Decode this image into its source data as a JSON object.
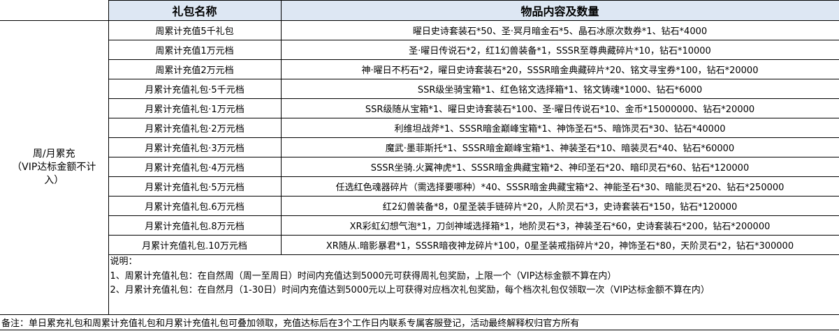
{
  "header": {
    "col_name": "礼包名称",
    "col_items": "物品内容及数量"
  },
  "category": "周/月累充\n（VIP达标金额不计入）",
  "rows": [
    {
      "name": "周累计充值5千礼包",
      "items": "曜日史诗套装石*50、圣·冥月暗金石*5、晶石冰原次数券*1、钻石*4000"
    },
    {
      "name": "周累计充值1万元档",
      "items": "圣·曜日传说石*2，红1幻兽装备*1，SSSR至尊典藏碎片*10，钻石*10000"
    },
    {
      "name": "周累计充值2万元档",
      "items": "神·曜日不朽石*2，曜日史诗套装石*20，SSSR暗金典藏碎片*20、铭文寻宝券*100，钻石*20000"
    },
    {
      "name": "月累计充值礼包·5千元档",
      "items": "SSR级坐骑宝箱*1、红色铭文选择箱*1、铭文铸魂*1000、钻石*6000"
    },
    {
      "name": "月累计充值礼包·1万元档",
      "items": "SSR级随从宝箱*1、曜日史诗套装石*100、圣·曜日传说石*10、金币*15000000、钻石*20000"
    },
    {
      "name": "月累计充值礼包·2万元档",
      "items": "利维坦战斧*1、SSSR暗金巅峰宝箱*1、神饰圣石*5、暗饰灵石*30、钻石*40000"
    },
    {
      "name": "月累计充值礼包·3万元档",
      "items": "魔武·墨菲斯托*1、SSSR暗金巅峰宝箱*1、神装圣石*10、暗装灵石*40、钻石*60000"
    },
    {
      "name": "月累计充值礼包·4万元档",
      "items": "SSSR坐骑.火翼神虎*1、SSSR暗金典藏宝箱*2、神印圣石*20、暗印灵石*60、钻石*120000"
    },
    {
      "name": "月累计充值礼包·5万元档",
      "items": "任选红色魂器碎片（需选择要哪种）*40、SSSR暗金典藏宝箱*2、神能圣石*30、暗能灵石*20、钻石*250000"
    },
    {
      "name": "月累计充值礼包.6万元档",
      "items": "红2幻兽装备*8，0星圣装手链碎片*20，人阶灵石*3，史诗套装石*150，钻石*120000"
    },
    {
      "name": "月累计充值礼包.8万元档",
      "items": "XR彩虹幻想气泡*1，刀剑神域选择箱*1，地阶灵石*3，神装圣石*60，史诗套装石*200，钻石*200000"
    },
    {
      "name": "月累计充值礼包.10万元档",
      "items": "XR随从.暗影暴君*1，SSSR暗夜神龙碎片*100，0星圣装戒指碎片*20，神饰圣石*80，天阶灵石*2，钻石*300000"
    }
  ],
  "notes": {
    "title": "说明：",
    "line1": "1、周累计充值礼包：在自然周（周一至周日）时间内充值达到5000元可获得周礼包奖励，上限一个（VIP达标金额不算在内）",
    "line2": "2、月累计充值礼包：在自然月（1-30日）时间内充值达到5000元以上可获得对应档次礼包奖励，每个档次礼包仅领取一次（VIP达标金额不算在内）"
  },
  "footer": "备注：单日累充礼包和周累计充值礼包和月累计充值礼包可叠加领取，充值达标后在3个工作日内联系专属客服登记，活动最终解释权归官方所有",
  "colors": {
    "header_bg": "#dde7f3",
    "border": "#000000"
  }
}
